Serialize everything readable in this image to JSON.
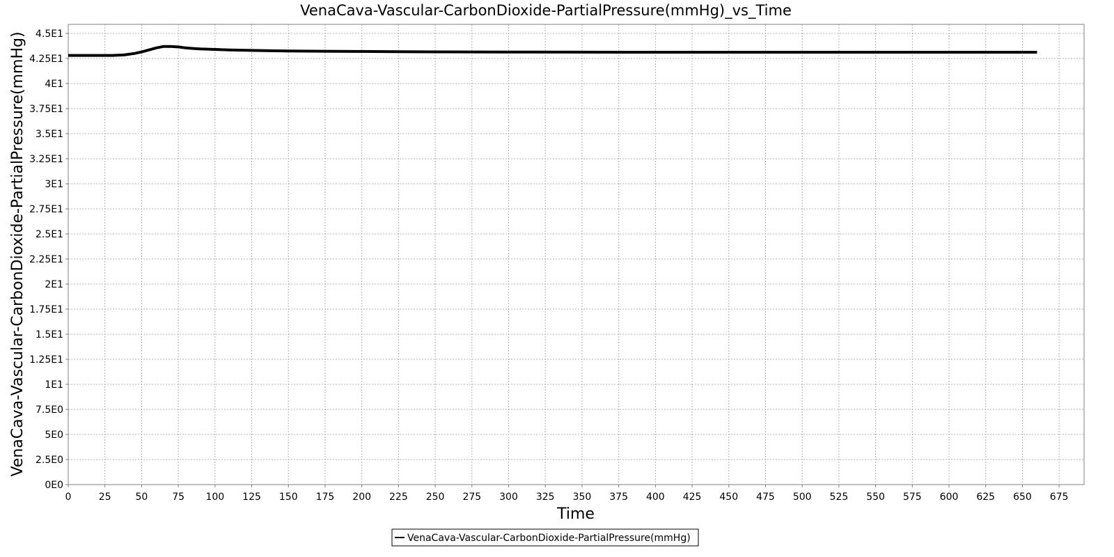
{
  "chart_data": {
    "type": "line",
    "title": "VenaCava-Vascular-CarbonDioxide-PartialPressure(mmHg)_vs_Time",
    "xlabel": "Time",
    "ylabel": "VenaCava-Vascular-CarbonDioxide-PartialPressure(mmHg)",
    "xlim": [
      0,
      692
    ],
    "ylim": [
      0,
      45.9
    ],
    "x_ticks": [
      0,
      25,
      50,
      75,
      100,
      125,
      150,
      175,
      200,
      225,
      250,
      275,
      300,
      325,
      350,
      375,
      400,
      425,
      450,
      475,
      500,
      525,
      550,
      575,
      600,
      625,
      650,
      675
    ],
    "x_tick_labels": [
      "0",
      "25",
      "50",
      "75",
      "100",
      "125",
      "150",
      "175",
      "200",
      "225",
      "250",
      "275",
      "300",
      "325",
      "350",
      "375",
      "400",
      "425",
      "450",
      "475",
      "500",
      "525",
      "550",
      "575",
      "600",
      "625",
      "650",
      "675"
    ],
    "y_ticks": [
      0,
      2.5,
      5,
      7.5,
      10,
      12.5,
      15,
      17.5,
      20,
      22.5,
      25,
      27.5,
      30,
      32.5,
      35,
      37.5,
      40,
      42.5,
      45
    ],
    "y_tick_labels": [
      "0E0",
      "2.5E0",
      "5E0",
      "7.5E0",
      "1E1",
      "1.25E1",
      "1.5E1",
      "1.75E1",
      "2E1",
      "2.25E1",
      "2.5E1",
      "2.75E1",
      "3E1",
      "3.25E1",
      "3.5E1",
      "3.75E1",
      "4E1",
      "4.25E1",
      "4.5E1"
    ],
    "grid": true,
    "legend_position": "bottom-center",
    "series": [
      {
        "name": "VenaCava-Vascular-CarbonDioxide-PartialPressure(mmHg)",
        "color": "#000000",
        "x": [
          0,
          10,
          20,
          30,
          38,
          45,
          50,
          55,
          60,
          65,
          70,
          75,
          80,
          85,
          90,
          100,
          110,
          125,
          150,
          175,
          200,
          225,
          250,
          275,
          300,
          350,
          400,
          450,
          500,
          550,
          600,
          650,
          660
        ],
        "y": [
          42.8,
          42.8,
          42.8,
          42.8,
          42.85,
          43.0,
          43.15,
          43.35,
          43.55,
          43.7,
          43.7,
          43.65,
          43.55,
          43.5,
          43.45,
          43.4,
          43.35,
          43.3,
          43.25,
          43.22,
          43.2,
          43.18,
          43.16,
          43.15,
          43.14,
          43.13,
          43.12,
          43.12,
          43.12,
          43.12,
          43.12,
          43.12,
          43.12
        ]
      }
    ]
  }
}
